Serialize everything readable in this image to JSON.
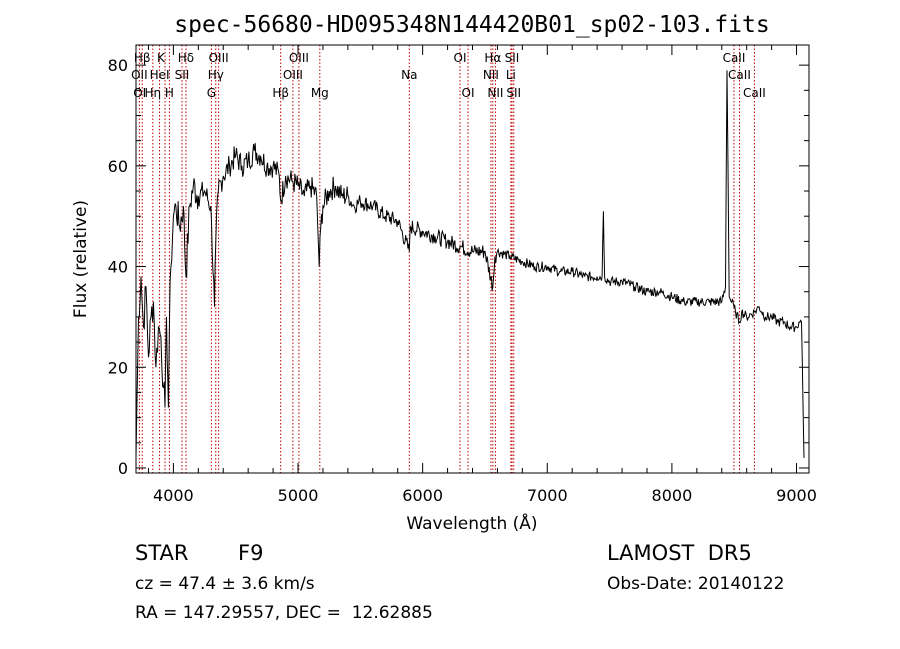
{
  "chart_data": {
    "type": "line",
    "title": "spec-56680-HD095348N144420B01_sp02-103.fits",
    "xlabel": "Wavelength (Å)",
    "ylabel": "Flux (relative)",
    "xlim": [
      3700,
      9100
    ],
    "ylim": [
      -1,
      84
    ],
    "x_ticks": [
      4000,
      5000,
      6000,
      7000,
      8000,
      9000
    ],
    "y_ticks": [
      0,
      20,
      40,
      60,
      80
    ],
    "grid": false,
    "series": [
      {
        "x": [
          3700,
          3720,
          3740,
          3760,
          3780,
          3800,
          3820,
          3840,
          3860,
          3880,
          3900,
          3920,
          3933,
          3945,
          3960,
          3968,
          3980,
          4000,
          4020,
          4050,
          4080,
          4101,
          4130,
          4160,
          4200,
          4250,
          4300,
          4330,
          4340,
          4360,
          4400,
          4450,
          4500,
          4550,
          4600,
          4650,
          4700,
          4750,
          4800,
          4850,
          4861,
          4900,
          4950,
          5000,
          5050,
          5100,
          5150,
          5170,
          5183,
          5200,
          5250,
          5300,
          5350,
          5400,
          5450,
          5500,
          5600,
          5700,
          5800,
          5893,
          5900,
          6000,
          6100,
          6200,
          6300,
          6400,
          6500,
          6563,
          6580,
          6600,
          6700,
          6800,
          6900,
          7000,
          7100,
          7200,
          7300,
          7400,
          7440,
          7450,
          7460,
          7500,
          7600,
          7700,
          7800,
          7900,
          8000,
          8100,
          8200,
          8300,
          8400,
          8430,
          8442,
          8450,
          8460,
          8498,
          8510,
          8542,
          8560,
          8600,
          8662,
          8700,
          8750,
          8800,
          8850,
          8900,
          8950,
          9000,
          9020,
          9040,
          9060
        ],
        "y": [
          2,
          30,
          38,
          28,
          36,
          22,
          30,
          33,
          20,
          28,
          26,
          16,
          12,
          30,
          12,
          28,
          40,
          50,
          52,
          48,
          52,
          38,
          52,
          56,
          54,
          55,
          52,
          32,
          45,
          55,
          58,
          60,
          62,
          60,
          61,
          63,
          62,
          60,
          60,
          58,
          53,
          58,
          57,
          56,
          54,
          56,
          54,
          40,
          48,
          52,
          55,
          56,
          54,
          54,
          52,
          53,
          52,
          50,
          49,
          43,
          48,
          47,
          46,
          45,
          44,
          43,
          43,
          36,
          42,
          43,
          42,
          41,
          40,
          40,
          39,
          39,
          38,
          38,
          38,
          51,
          38,
          37,
          37,
          36,
          35,
          35,
          34,
          33,
          33,
          33,
          33,
          36,
          79,
          60,
          34,
          32,
          31,
          29,
          31,
          30,
          31,
          32,
          30,
          30,
          29,
          29,
          28,
          28,
          29,
          29,
          2
        ]
      }
    ],
    "line_labels": [
      {
        "text": "Hβ",
        "x": 3750,
        "row": 1
      },
      {
        "text": "K",
        "x": 3900,
        "row": 1
      },
      {
        "text": "Hδ",
        "x": 4101,
        "row": 1
      },
      {
        "text": "OIII",
        "x": 4363,
        "row": 1
      },
      {
        "text": "OIII",
        "x": 5007,
        "row": 1
      },
      {
        "text": "OI",
        "x": 6300,
        "row": 1
      },
      {
        "text": "Hα",
        "x": 6563,
        "row": 1
      },
      {
        "text": "SII",
        "x": 6717,
        "row": 1
      },
      {
        "text": "CaII",
        "x": 8498,
        "row": 1
      },
      {
        "text": "OII",
        "x": 3727,
        "row": 2
      },
      {
        "text": "HeI",
        "x": 3889,
        "row": 2
      },
      {
        "text": "SII",
        "x": 4069,
        "row": 2
      },
      {
        "text": "Hγ",
        "x": 4340,
        "row": 2
      },
      {
        "text": "OIII",
        "x": 4959,
        "row": 2
      },
      {
        "text": "Na",
        "x": 5893,
        "row": 2
      },
      {
        "text": "NII",
        "x": 6548,
        "row": 2
      },
      {
        "text": "Li",
        "x": 6708,
        "row": 2
      },
      {
        "text": "CaII",
        "x": 8542,
        "row": 2
      },
      {
        "text": "OI",
        "x": 3730,
        "row": 3
      },
      {
        "text": "Hη",
        "x": 3835,
        "row": 3
      },
      {
        "text": "H",
        "x": 3968,
        "row": 3
      },
      {
        "text": "G",
        "x": 4305,
        "row": 3
      },
      {
        "text": "Hβ",
        "x": 4861,
        "row": 3
      },
      {
        "text": "Mg",
        "x": 5175,
        "row": 3
      },
      {
        "text": "OI",
        "x": 6364,
        "row": 3
      },
      {
        "text": "NII",
        "x": 6584,
        "row": 3
      },
      {
        "text": "SII",
        "x": 6731,
        "row": 3
      },
      {
        "text": "CaII",
        "x": 8662,
        "row": 3
      }
    ],
    "line_positions": [
      3727,
      3750,
      3835,
      3889,
      3933,
      3968,
      4069,
      4101,
      4305,
      4340,
      4363,
      4861,
      4959,
      5007,
      5175,
      5893,
      6300,
      6364,
      6548,
      6563,
      6584,
      6708,
      6717,
      6731,
      8498,
      8542,
      8662
    ]
  },
  "info": {
    "object_type": "STAR",
    "subclass": "F9",
    "redshift": "cz = 47.4 ± 3.6 km/s",
    "coords": "RA = 147.29557, DEC =  12.62885",
    "survey": "LAMOST  DR5",
    "obs_date": "Obs-Date: 20140122"
  },
  "colors": {
    "line": "#000000",
    "marker": "#c00000",
    "axis": "#000000"
  }
}
